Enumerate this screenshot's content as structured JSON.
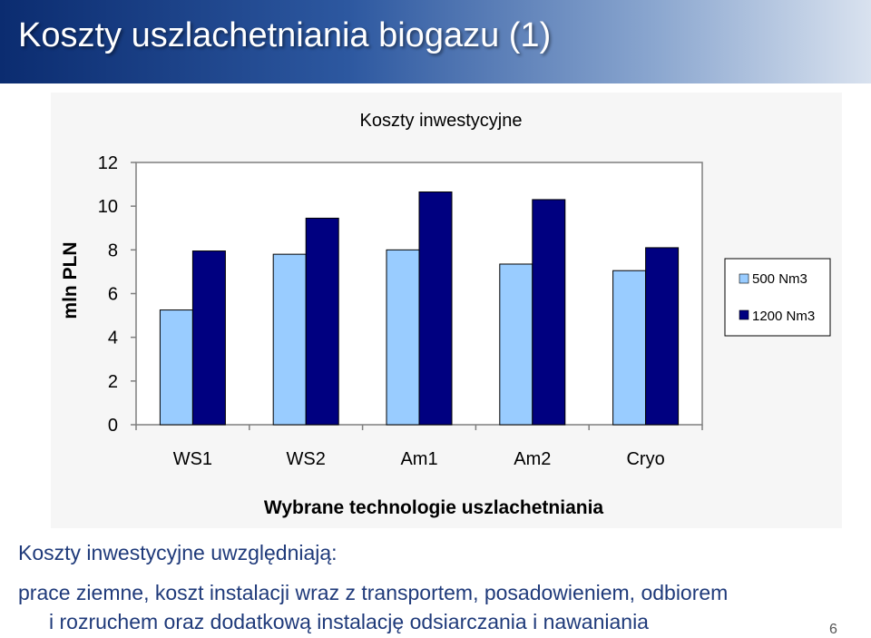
{
  "slide": {
    "title": "Koszty uszlachetniania biogazu (1)",
    "page_number": "6"
  },
  "body": {
    "heading": "Koszty inwestycyjne uwzględniają:",
    "line1": "prace ziemne, koszt instalacji wraz z transportem, posadowieniem, odbiorem",
    "line2": "i rozruchem oraz dodatkową instalację odsiarczania i nawaniania"
  },
  "colors": {
    "series_500": "#99ccff",
    "series_1200": "#000080"
  },
  "chart_data": {
    "type": "bar",
    "title": "Koszty inwestycyjne",
    "xlabel": "Wybrane technologie uszlachetniania",
    "ylabel": "mln PLN",
    "categories": [
      "WS1",
      "WS2",
      "Am1",
      "Am2",
      "Cryo"
    ],
    "series": [
      {
        "name": "500 Nm3",
        "values": [
          5.25,
          7.8,
          8.0,
          7.35,
          7.05
        ]
      },
      {
        "name": "1200 Nm3",
        "values": [
          7.95,
          9.45,
          10.65,
          10.3,
          8.1
        ]
      }
    ],
    "yticks": [
      "0",
      "2",
      "4",
      "6",
      "8",
      "10",
      "12"
    ],
    "ylim": [
      0,
      12
    ],
    "grid": false,
    "legend_position": "right"
  }
}
